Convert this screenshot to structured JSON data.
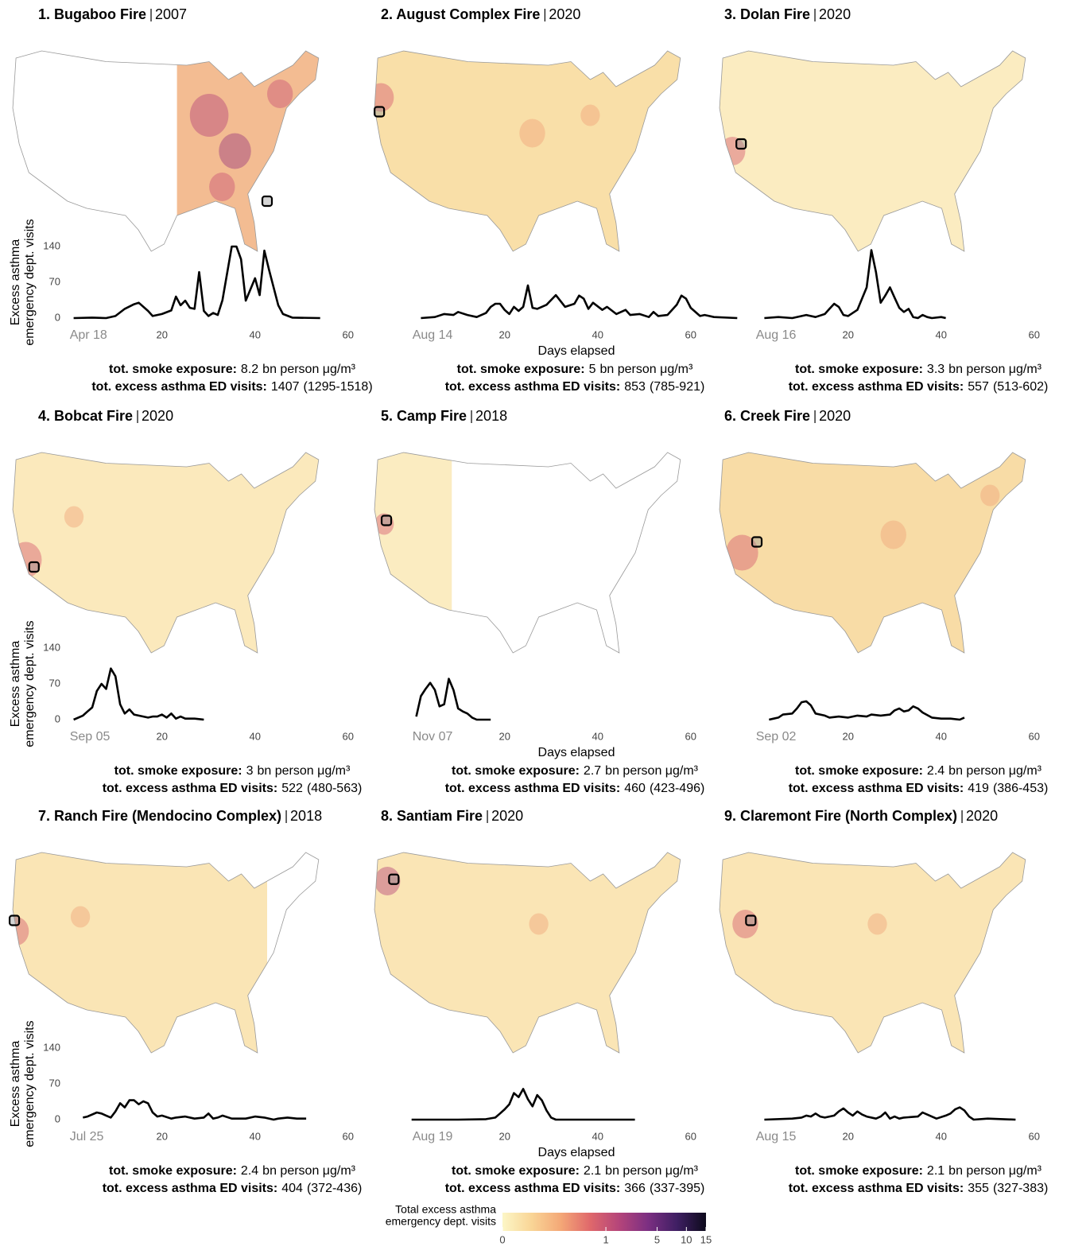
{
  "labels": {
    "smoke_exposure": "tot. smoke exposure:",
    "exposure_unit": "bn person μg/m³",
    "visits": "tot. excess asthma ED visits:",
    "xlabel": "Days elapsed",
    "ylabel": [
      "Excess asthma",
      "emergency dept. visits"
    ]
  },
  "chart_data": [
    {
      "type": "line",
      "title": "1. Bugaboo Fire",
      "year": 2007,
      "color": "#000000",
      "x": [
        1,
        5,
        8,
        10,
        12,
        14,
        15,
        17,
        18,
        20,
        22,
        23,
        24,
        25,
        26,
        27,
        28,
        29,
        30,
        31,
        32,
        33,
        35,
        36,
        37,
        38,
        40,
        41,
        42,
        43,
        45,
        46,
        48,
        54
      ],
      "values": [
        0,
        1,
        0,
        4,
        18,
        27,
        30,
        14,
        4,
        8,
        15,
        42,
        25,
        34,
        20,
        18,
        90,
        14,
        4,
        10,
        6,
        35,
        140,
        140,
        115,
        34,
        78,
        45,
        132,
        95,
        25,
        8,
        1,
        0
      ],
      "xlim": [
        -2,
        72
      ],
      "xticks": [
        {
          "value": 0,
          "label": "Apr 18"
        },
        20,
        40,
        60
      ],
      "ylim": [
        0,
        145
      ],
      "yticks": [
        0,
        70,
        140
      ],
      "smoke_exposure": 8.2,
      "asthma_visits": 1407,
      "asthma_visits_ci": "(1295-1518)"
    },
    {
      "type": "line",
      "title": "2. August Complex Fire",
      "year": 2020,
      "color": "#000000",
      "x": [
        2,
        5,
        7,
        9,
        10,
        12,
        14,
        16,
        17,
        18,
        19,
        20,
        21,
        22,
        23,
        24,
        25,
        26,
        27,
        29,
        31,
        33,
        35,
        36,
        37,
        38,
        39,
        41,
        42,
        44,
        46,
        47,
        49,
        51,
        52,
        53,
        55,
        57,
        58,
        59,
        60,
        62,
        63,
        65,
        70
      ],
      "values": [
        0,
        2,
        8,
        6,
        12,
        6,
        2,
        10,
        22,
        28,
        28,
        16,
        8,
        22,
        14,
        22,
        64,
        20,
        18,
        26,
        45,
        22,
        28,
        44,
        38,
        18,
        30,
        16,
        22,
        8,
        16,
        6,
        8,
        2,
        12,
        4,
        6,
        26,
        44,
        38,
        20,
        4,
        6,
        2,
        0
      ],
      "xlim": [
        -2,
        72
      ],
      "xticks": [
        {
          "value": 0,
          "label": "Aug 14"
        },
        20,
        40,
        60
      ],
      "ylim": [
        0,
        145
      ],
      "smoke_exposure": 5,
      "asthma_visits": 853,
      "asthma_visits_ci": "(785-921)"
    },
    {
      "type": "line",
      "title": "3. Dolan Fire",
      "year": 2020,
      "color": "#000000",
      "x": [
        2,
        5,
        8,
        11,
        13,
        15,
        16,
        17,
        18,
        19,
        20,
        22,
        24,
        25,
        26,
        27,
        28,
        29,
        30,
        31,
        32,
        33,
        34,
        35,
        36,
        37,
        38,
        40,
        41
      ],
      "values": [
        0,
        2,
        0,
        6,
        2,
        8,
        18,
        28,
        22,
        6,
        4,
        16,
        60,
        133,
        90,
        30,
        44,
        60,
        40,
        20,
        12,
        18,
        2,
        0,
        6,
        2,
        0,
        2,
        0
      ],
      "xlim": [
        -2,
        72
      ],
      "xticks": [
        {
          "value": 0,
          "label": "Aug 16"
        },
        20,
        40,
        60
      ],
      "ylim": [
        0,
        145
      ],
      "smoke_exposure": 3.3,
      "asthma_visits": 557,
      "asthma_visits_ci": "(513-602)"
    },
    {
      "type": "line",
      "title": "4. Bobcat Fire",
      "year": 2020,
      "color": "#000000",
      "x": [
        1,
        3,
        4,
        5,
        6,
        7,
        8,
        9,
        10,
        11,
        12,
        13,
        14,
        15,
        17,
        18,
        19,
        20,
        21,
        22,
        23,
        24,
        25,
        27,
        29
      ],
      "values": [
        0,
        8,
        16,
        24,
        56,
        70,
        60,
        100,
        85,
        30,
        12,
        20,
        10,
        8,
        4,
        6,
        6,
        10,
        4,
        12,
        2,
        6,
        2,
        2,
        0
      ],
      "xlim": [
        -2,
        72
      ],
      "xticks": [
        {
          "value": 0,
          "label": "Sep 05"
        },
        20,
        40,
        60
      ],
      "ylim": [
        0,
        145
      ],
      "yticks": [
        0,
        70,
        140
      ],
      "smoke_exposure": 3,
      "asthma_visits": 522,
      "asthma_visits_ci": "(480-563)"
    },
    {
      "type": "line",
      "title": "5. Camp Fire",
      "year": 2018,
      "color": "#000000",
      "x": [
        1,
        2,
        3,
        4,
        5,
        6,
        7,
        8,
        9,
        10,
        11,
        12,
        13,
        14,
        15,
        17
      ],
      "values": [
        6,
        46,
        60,
        72,
        58,
        26,
        30,
        80,
        58,
        22,
        16,
        12,
        4,
        0,
        0,
        0
      ],
      "xlim": [
        -2,
        72
      ],
      "xticks": [
        {
          "value": 0,
          "label": "Nov 07"
        },
        20,
        40,
        60
      ],
      "ylim": [
        0,
        145
      ],
      "smoke_exposure": 2.7,
      "asthma_visits": 460,
      "asthma_visits_ci": "(423-496)"
    },
    {
      "type": "line",
      "title": "6. Creek Fire",
      "year": 2020,
      "color": "#000000",
      "x": [
        3,
        4,
        5,
        6,
        8,
        9,
        10,
        11,
        12,
        13,
        15,
        16,
        18,
        20,
        22,
        24,
        25,
        27,
        29,
        30,
        31,
        32,
        33,
        34,
        35,
        36,
        38,
        40,
        42,
        44,
        45
      ],
      "values": [
        0,
        2,
        4,
        10,
        12,
        22,
        34,
        36,
        28,
        12,
        8,
        4,
        6,
        4,
        8,
        6,
        10,
        8,
        10,
        18,
        22,
        16,
        18,
        26,
        22,
        14,
        4,
        2,
        2,
        0,
        4
      ],
      "xlim": [
        -2,
        72
      ],
      "xticks": [
        {
          "value": 0,
          "label": "Sep 02"
        },
        20,
        40,
        60
      ],
      "ylim": [
        0,
        145
      ],
      "smoke_exposure": 2.4,
      "asthma_visits": 419,
      "asthma_visits_ci": "(386-453)"
    },
    {
      "type": "line",
      "title": "7. Ranch Fire (Mendocino Complex)",
      "year": 2018,
      "color": "#000000",
      "x": [
        3,
        4,
        6,
        7,
        8,
        9,
        10,
        11,
        12,
        13,
        14,
        15,
        16,
        17,
        18,
        19,
        20,
        22,
        23,
        25,
        27,
        29,
        30,
        31,
        32,
        33,
        35,
        38,
        40,
        42,
        44,
        45,
        47,
        49,
        51
      ],
      "values": [
        4,
        6,
        14,
        12,
        8,
        4,
        16,
        32,
        24,
        38,
        38,
        30,
        36,
        32,
        14,
        6,
        8,
        2,
        4,
        6,
        2,
        4,
        12,
        2,
        4,
        8,
        2,
        2,
        6,
        4,
        0,
        2,
        4,
        2,
        2
      ],
      "xlim": [
        -2,
        72
      ],
      "xticks": [
        {
          "value": 0,
          "label": "Jul 25"
        },
        20,
        40,
        60
      ],
      "ylim": [
        0,
        145
      ],
      "yticks": [
        0,
        70,
        140
      ],
      "smoke_exposure": 2.4,
      "asthma_visits": 404,
      "asthma_visits_ci": "(372-436)"
    },
    {
      "type": "line",
      "title": "8. Santiam Fire",
      "year": 2020,
      "color": "#000000",
      "x": [
        0,
        10,
        16,
        18,
        19,
        20,
        21,
        22,
        23,
        24,
        25,
        26,
        27,
        28,
        29,
        30,
        31,
        35,
        48
      ],
      "values": [
        0,
        0,
        1,
        4,
        12,
        20,
        30,
        52,
        44,
        60,
        40,
        26,
        48,
        38,
        18,
        4,
        0,
        0,
        0
      ],
      "xlim": [
        -2,
        72
      ],
      "xticks": [
        {
          "value": 0,
          "label": "Aug 19"
        },
        20,
        40,
        60
      ],
      "ylim": [
        0,
        145
      ],
      "smoke_exposure": 2.1,
      "asthma_visits": 366,
      "asthma_visits_ci": "(337-395)"
    },
    {
      "type": "line",
      "title": "9. Claremont Fire (North Complex)",
      "year": 2020,
      "color": "#000000",
      "x": [
        2,
        8,
        10,
        11,
        12,
        13,
        14,
        15,
        17,
        18,
        19,
        20,
        21,
        22,
        23,
        24,
        26,
        27,
        28,
        29,
        30,
        31,
        32,
        35,
        36,
        37,
        39,
        41,
        42,
        43,
        44,
        45,
        46,
        47,
        50,
        56
      ],
      "values": [
        0,
        2,
        4,
        8,
        6,
        12,
        6,
        4,
        8,
        16,
        22,
        14,
        8,
        16,
        10,
        6,
        2,
        6,
        14,
        2,
        6,
        2,
        4,
        6,
        14,
        10,
        2,
        8,
        12,
        20,
        24,
        18,
        6,
        0,
        2,
        0
      ],
      "xlim": [
        -2,
        72
      ],
      "xticks": [
        {
          "value": 0,
          "label": "Aug 15"
        },
        20,
        40,
        60
      ],
      "ylim": [
        0,
        145
      ],
      "smoke_exposure": 2.1,
      "asthma_visits": 355,
      "asthma_visits_ci": "(327-383)"
    }
  ],
  "colorbar": {
    "title": [
      "Total excess asthma",
      "emergency dept. visits"
    ],
    "lim": [
      0,
      15
    ],
    "ticks": [
      0,
      1,
      5,
      10,
      15
    ],
    "power": 0.25,
    "colors": [
      "#fcf6c6",
      "#f9d596",
      "#f4a877",
      "#e0696b",
      "#b5457a",
      "#7c2f82",
      "#3f1f63",
      "#0d0a1c"
    ]
  }
}
